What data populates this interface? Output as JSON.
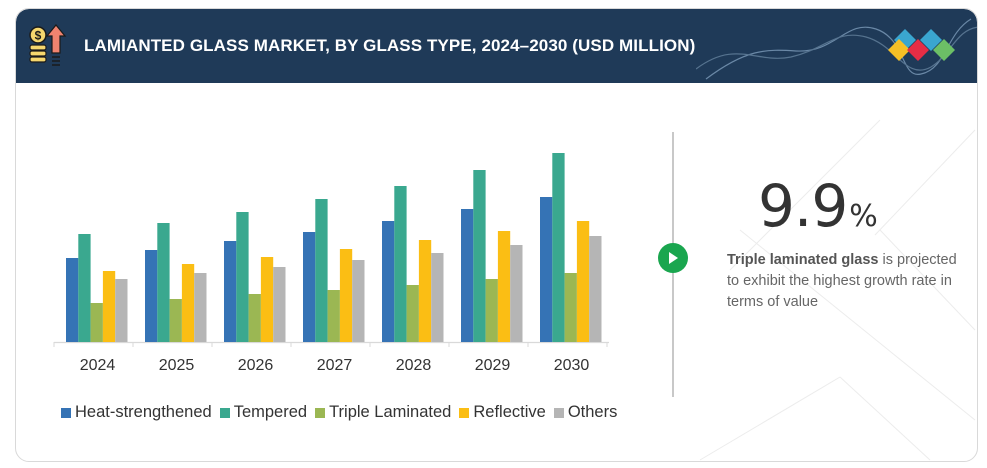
{
  "header": {
    "title": "LAMIANTED GLASS MARKET, BY GLASS TYPE, 2024–2030 (USD MILLION)",
    "icon": "money-growth-icon",
    "logo": "brand-diamonds-logo"
  },
  "kpi": {
    "value": "9.9",
    "unit": "%",
    "description_bold": "Triple laminated glass",
    "description_rest": " is projected to exhibit the highest growth rate in terms  of value"
  },
  "colors": {
    "header_bg": "#1f3a58",
    "play_button": "#1aa64f",
    "Heat-strengthened": "#3573b5",
    "Tempered": "#3aa88f",
    "Triple Laminated": "#9bb753",
    "Reflective": "#fbbe14",
    "Others": "#b5b5b5"
  },
  "chart_data": {
    "type": "bar",
    "title": "LAMIANTED GLASS MARKET, BY GLASS TYPE, 2024–2030 (USD MILLION)",
    "xlabel": "",
    "ylabel": "",
    "grid": false,
    "legend_position": "bottom",
    "note": "No y-axis shown; values are relative estimates read from bar heights",
    "categories": [
      "2024",
      "2025",
      "2026",
      "2027",
      "2028",
      "2029",
      "2030"
    ],
    "ylim": [
      0,
      200
    ],
    "series": [
      {
        "name": "Heat-strengthened",
        "color": "#3573b5",
        "values": [
          84,
          92,
          101,
          110,
          121,
          133,
          145
        ]
      },
      {
        "name": "Tempered",
        "color": "#3aa88f",
        "values": [
          108,
          119,
          130,
          143,
          156,
          172,
          189
        ]
      },
      {
        "name": "Triple Laminated",
        "color": "#9bb753",
        "values": [
          39,
          43,
          48,
          52,
          57,
          63,
          69
        ]
      },
      {
        "name": "Reflective",
        "color": "#fbbe14",
        "values": [
          71,
          78,
          85,
          93,
          102,
          111,
          121
        ]
      },
      {
        "name": "Others",
        "color": "#b5b5b5",
        "values": [
          63,
          69,
          75,
          82,
          89,
          97,
          106
        ]
      }
    ]
  }
}
